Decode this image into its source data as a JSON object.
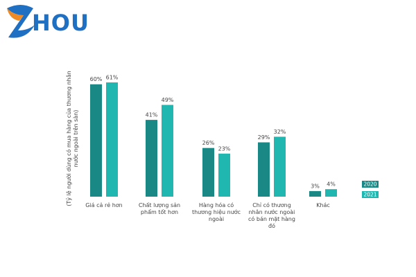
{
  "logo": {
    "text": "HOU"
  },
  "chart_data": {
    "type": "bar",
    "y_label": "(Tỷ lệ người dùng có mua hàng của thương nhân nước ngoài trên sàn)",
    "categories": [
      "Giá cả rẻ hơn",
      "Chất lượng sản phẩm tốt hơn",
      "Hàng hóa có thương hiệu nước ngoài",
      "Chỉ có thương nhân nước ngoài có bán mặt hàng đó",
      "Khác"
    ],
    "series": [
      {
        "name": "2020",
        "color": "#1a8985",
        "values": [
          60,
          41,
          26,
          29,
          3
        ],
        "value_labels": [
          "60%",
          "41%",
          "26%",
          "29%",
          "3%"
        ]
      },
      {
        "name": "2021",
        "color": "#20b7b1",
        "values": [
          61,
          49,
          23,
          32,
          4
        ],
        "value_labels": [
          "61%",
          "49%",
          "23%",
          "32%",
          "4%"
        ]
      }
    ],
    "legend": "right"
  }
}
